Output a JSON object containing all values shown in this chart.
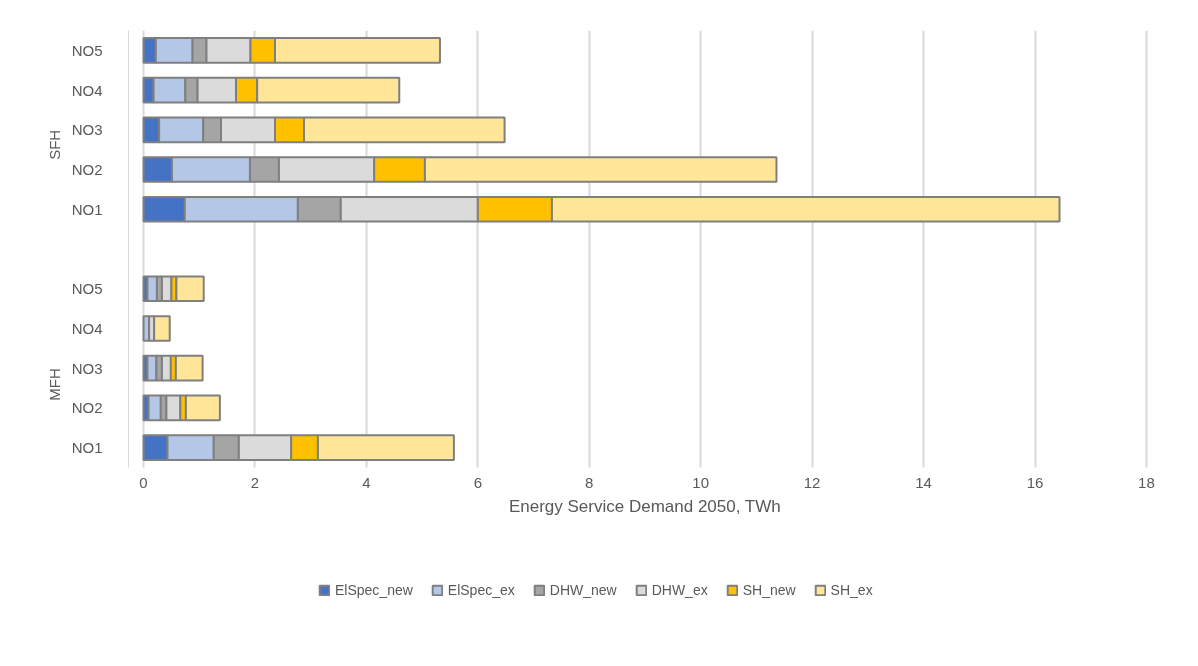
{
  "chart_data": {
    "type": "bar",
    "orientation": "horizontal",
    "stacked": true,
    "categories": [
      "NO5",
      "NO4",
      "NO3",
      "NO2",
      "NO1",
      null,
      "NO5",
      "NO4",
      "NO3",
      "NO2",
      "NO1"
    ],
    "annotations": [
      "SFH",
      "MFH"
    ],
    "xlabel": "Energy Service Demand 2050, TWh",
    "xlim": [
      0,
      18
    ],
    "xticks": [
      0,
      2,
      4,
      6,
      8,
      10,
      12,
      14,
      16,
      18
    ],
    "grid": "x",
    "legend": "bottom",
    "series": [
      {
        "name": "ElSpec_new",
        "color": "#4472c4",
        "values": [
          0.22,
          0.18,
          0.28,
          0.51,
          0.74,
          null,
          0.07,
          null,
          0.07,
          0.09,
          0.43
        ]
      },
      {
        "name": "ElSpec_ex",
        "color": "#b4c7e7",
        "values": [
          0.66,
          0.57,
          0.79,
          1.4,
          2.03,
          null,
          0.17,
          0.1,
          0.16,
          0.22,
          0.83
        ]
      },
      {
        "name": "DHW_new",
        "color": "#a5a5a5",
        "values": [
          0.25,
          0.22,
          0.32,
          0.52,
          0.77,
          null,
          0.09,
          null,
          0.1,
          0.1,
          0.45
        ]
      },
      {
        "name": "DHW_ex",
        "color": "#dbdbdb",
        "values": [
          0.79,
          0.69,
          0.97,
          1.71,
          2.46,
          null,
          0.17,
          0.09,
          0.16,
          0.25,
          0.94
        ]
      },
      {
        "name": "SH_new",
        "color": "#ffc000",
        "values": [
          0.44,
          0.38,
          0.52,
          0.91,
          1.33,
          null,
          0.09,
          null,
          0.09,
          0.1,
          0.48
        ]
      },
      {
        "name": "SH_ex",
        "color": "#ffe699",
        "values": [
          2.96,
          2.55,
          3.6,
          6.31,
          9.11,
          null,
          0.49,
          0.28,
          0.48,
          0.61,
          2.44
        ]
      }
    ]
  }
}
